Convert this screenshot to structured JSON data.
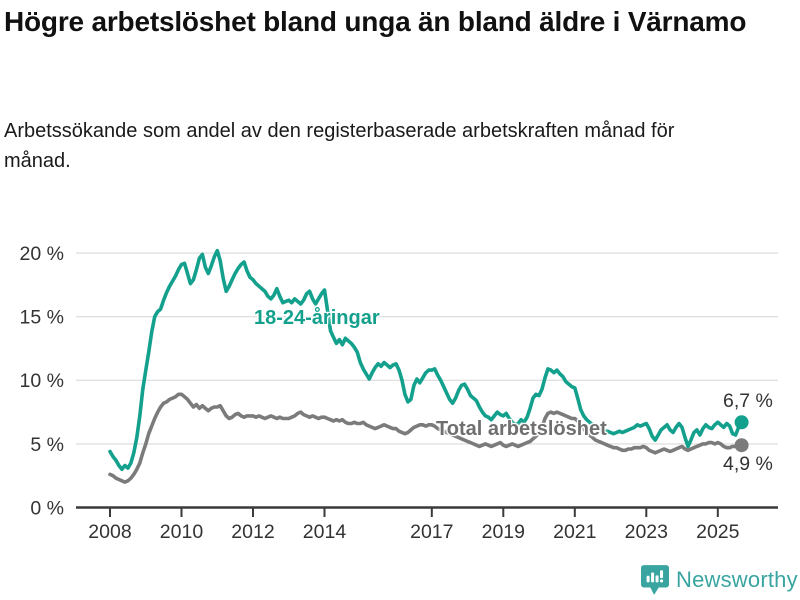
{
  "header": {
    "title": "Högre arbetslöshet bland unga än bland äldre i Värnamo",
    "subtitle": "Arbetssökande som andel av den registerbaserade arbetskraften månad för månad."
  },
  "chart_data": {
    "type": "line",
    "title": "Högre arbetslöshet bland unga än bland äldre i Värnamo",
    "subtitle": "Arbetssökande som andel av den registerbaserade arbetskraften månad för månad.",
    "unit": "%",
    "grid": "horizontal-only",
    "legend_position": "inline-labels",
    "x_start_year": 2008,
    "x_step_months": 1,
    "x_end": "2025-09",
    "ylim": [
      0,
      20
    ],
    "y_ticks": [
      {
        "value": 20,
        "label": "20 %"
      },
      {
        "value": 15,
        "label": "15 %"
      },
      {
        "value": 10,
        "label": "10 %"
      },
      {
        "value": 5,
        "label": "5 %"
      },
      {
        "value": 0,
        "label": "0 %"
      }
    ],
    "x_ticks": [
      {
        "year": 2008,
        "label": "2008"
      },
      {
        "year": 2010,
        "label": "2010"
      },
      {
        "year": 2012,
        "label": "2012"
      },
      {
        "year": 2014,
        "label": "2014"
      },
      {
        "year": 2017,
        "label": "2017"
      },
      {
        "year": 2019,
        "label": "2019"
      },
      {
        "year": 2021,
        "label": "2021"
      },
      {
        "year": 2023,
        "label": "2023"
      },
      {
        "year": 2025,
        "label": "2025"
      }
    ],
    "series": [
      {
        "name": "18-24-åringar",
        "color": "#13a08c",
        "end_value": 6.7,
        "end_label": "6,7 %",
        "values": [
          4.4,
          4.0,
          3.7,
          3.3,
          3.0,
          3.3,
          3.1,
          3.5,
          4.3,
          5.5,
          7.2,
          9.3,
          10.8,
          12.2,
          13.8,
          15.0,
          15.4,
          15.6,
          16.3,
          16.9,
          17.4,
          17.8,
          18.2,
          18.7,
          19.1,
          19.2,
          18.4,
          17.6,
          17.9,
          18.7,
          19.6,
          19.9,
          18.9,
          18.4,
          19.0,
          19.7,
          20.2,
          19.4,
          18.0,
          17.0,
          17.4,
          17.9,
          18.4,
          18.8,
          19.1,
          19.3,
          18.6,
          18.1,
          17.9,
          17.6,
          17.4,
          17.2,
          17.0,
          16.6,
          16.4,
          16.7,
          17.2,
          16.6,
          16.1,
          16.2,
          16.3,
          16.1,
          16.4,
          16.2,
          16.0,
          16.3,
          16.8,
          17.0,
          16.4,
          16.0,
          16.4,
          16.8,
          17.1,
          15.5,
          13.9,
          13.4,
          12.9,
          13.2,
          12.8,
          13.3,
          13.1,
          12.9,
          12.6,
          12.2,
          11.4,
          10.9,
          10.5,
          10.1,
          10.6,
          11.0,
          11.3,
          11.1,
          11.4,
          11.2,
          11.0,
          11.2,
          11.3,
          10.8,
          10.0,
          8.9,
          8.3,
          8.5,
          9.6,
          10.1,
          9.8,
          10.2,
          10.6,
          10.8,
          10.8,
          10.9,
          10.4,
          10.0,
          9.5,
          9.0,
          8.5,
          8.2,
          8.6,
          9.2,
          9.6,
          9.7,
          9.3,
          8.8,
          8.6,
          8.4,
          7.9,
          7.5,
          7.2,
          7.1,
          6.9,
          7.2,
          7.5,
          7.3,
          7.2,
          7.4,
          7.0,
          6.7,
          6.5,
          6.6,
          6.9,
          6.7,
          7.1,
          7.8,
          8.6,
          8.9,
          8.8,
          9.3,
          10.2,
          10.9,
          10.8,
          10.6,
          10.8,
          10.5,
          10.3,
          9.9,
          9.7,
          9.5,
          9.4,
          8.6,
          7.7,
          7.2,
          6.9,
          6.7,
          6.5,
          6.4,
          6.2,
          6.1,
          6.0,
          6.0,
          5.9,
          5.8,
          5.9,
          6.0,
          5.9,
          6.0,
          6.1,
          6.2,
          6.3,
          6.5,
          6.4,
          6.5,
          6.6,
          6.2,
          5.6,
          5.3,
          5.7,
          6.1,
          6.3,
          6.5,
          6.1,
          5.9,
          6.3,
          6.6,
          6.3,
          5.5,
          4.8,
          5.3,
          5.9,
          6.1,
          5.7,
          6.2,
          6.5,
          6.3,
          6.2,
          6.5,
          6.7,
          6.5,
          6.3,
          6.6,
          6.4,
          5.8,
          5.7,
          6.3,
          6.7
        ]
      },
      {
        "name": "Total arbetslöshet",
        "color": "#7b7b7b",
        "end_value": 4.9,
        "end_label": "4,9 %",
        "values": [
          2.6,
          2.5,
          2.3,
          2.2,
          2.1,
          2.0,
          2.1,
          2.3,
          2.6,
          3.0,
          3.5,
          4.3,
          5.0,
          5.8,
          6.4,
          7.0,
          7.5,
          7.9,
          8.2,
          8.3,
          8.5,
          8.6,
          8.7,
          8.9,
          8.9,
          8.7,
          8.5,
          8.2,
          7.9,
          8.1,
          7.8,
          8.0,
          7.8,
          7.6,
          7.8,
          7.9,
          7.9,
          8.0,
          7.6,
          7.2,
          7.0,
          7.1,
          7.3,
          7.4,
          7.2,
          7.1,
          7.2,
          7.2,
          7.2,
          7.1,
          7.2,
          7.1,
          7.0,
          7.1,
          7.2,
          7.1,
          7.0,
          7.1,
          7.0,
          7.0,
          7.0,
          7.1,
          7.2,
          7.4,
          7.5,
          7.3,
          7.2,
          7.1,
          7.2,
          7.1,
          7.0,
          7.1,
          7.1,
          7.0,
          6.9,
          6.8,
          6.9,
          6.8,
          6.9,
          6.7,
          6.6,
          6.6,
          6.7,
          6.6,
          6.6,
          6.7,
          6.5,
          6.4,
          6.3,
          6.2,
          6.3,
          6.4,
          6.5,
          6.4,
          6.3,
          6.2,
          6.2,
          6.0,
          5.9,
          5.8,
          5.9,
          6.1,
          6.3,
          6.4,
          6.5,
          6.5,
          6.4,
          6.5,
          6.5,
          6.4,
          6.2,
          6.1,
          6.0,
          5.9,
          5.8,
          5.7,
          5.6,
          5.5,
          5.4,
          5.3,
          5.2,
          5.1,
          5.0,
          4.9,
          4.8,
          4.9,
          5.0,
          4.9,
          4.8,
          4.9,
          5.0,
          5.1,
          4.9,
          4.8,
          4.9,
          5.0,
          4.9,
          4.8,
          4.9,
          5.0,
          5.1,
          5.2,
          5.4,
          5.6,
          5.9,
          6.3,
          7.0,
          7.4,
          7.5,
          7.4,
          7.5,
          7.4,
          7.3,
          7.2,
          7.1,
          7.0,
          7.0,
          6.8,
          6.5,
          6.2,
          5.9,
          5.7,
          5.5,
          5.3,
          5.2,
          5.1,
          5.0,
          4.9,
          4.8,
          4.7,
          4.7,
          4.6,
          4.5,
          4.5,
          4.6,
          4.6,
          4.7,
          4.7,
          4.7,
          4.8,
          4.7,
          4.5,
          4.4,
          4.3,
          4.4,
          4.5,
          4.6,
          4.5,
          4.4,
          4.5,
          4.6,
          4.7,
          4.8,
          4.6,
          4.5,
          4.6,
          4.7,
          4.8,
          4.9,
          5.0,
          5.0,
          5.1,
          5.1,
          5.0,
          5.1,
          5.0,
          4.8,
          4.7,
          4.7,
          4.8,
          4.8,
          4.9,
          4.9
        ]
      }
    ]
  },
  "footer": {
    "brand": "Newsworthy"
  }
}
